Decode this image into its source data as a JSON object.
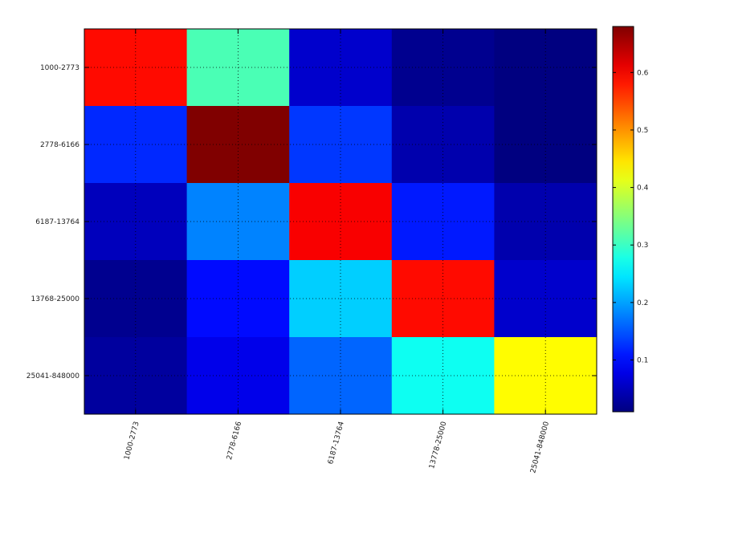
{
  "chart_data": {
    "type": "heatmap",
    "title": "",
    "xlabel": "",
    "ylabel": "",
    "x_categories": [
      "1000-2773",
      "2778-6166",
      "6187-13764",
      "13778-25000",
      "25041-848000"
    ],
    "y_categories": [
      "1000-2773",
      "2778-6166",
      "6187-13764",
      "13768-25000",
      "25041-848000"
    ],
    "values": [
      [
        0.59,
        0.31,
        0.06,
        0.02,
        0.01
      ],
      [
        0.12,
        0.68,
        0.13,
        0.04,
        0.01
      ],
      [
        0.05,
        0.18,
        0.6,
        0.11,
        0.04
      ],
      [
        0.02,
        0.1,
        0.23,
        0.59,
        0.06
      ],
      [
        0.03,
        0.08,
        0.16,
        0.27,
        0.43
      ]
    ],
    "colorbar": {
      "ticks": [
        0.1,
        0.2,
        0.3,
        0.4,
        0.5,
        0.6
      ],
      "tick_labels": [
        "0.1",
        "0.2",
        "0.3",
        "0.4",
        "0.5",
        "0.6"
      ],
      "range": [
        0.01,
        0.68
      ]
    },
    "colormap": "jet",
    "grid": true
  }
}
